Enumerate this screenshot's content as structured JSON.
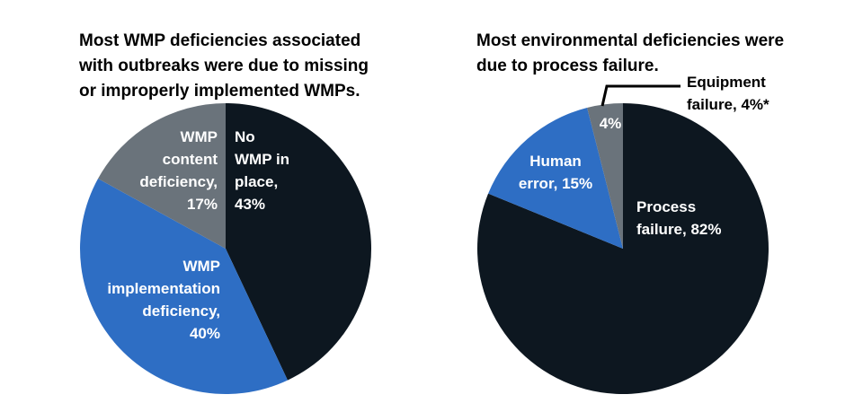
{
  "chart_data": [
    {
      "type": "pie",
      "title": "Most WMP deficiencies associated\nwith outbreaks were due to missing\nor improperly implemented WMPs.",
      "slices": [
        {
          "label": "No WMP in place",
          "display": [
            "No",
            "WMP in",
            "place,",
            "43%"
          ],
          "value": 43,
          "color": "#0d1720",
          "text_color": "#ffffff"
        },
        {
          "label": "WMP implementation deficiency",
          "display": [
            "WMP",
            "implementation",
            "deficiency,",
            "40%"
          ],
          "value": 40,
          "color": "#2e6ec4",
          "text_color": "#ffffff"
        },
        {
          "label": "WMP content deficiency",
          "display": [
            "WMP",
            "content",
            "deficiency,",
            "17%"
          ],
          "value": 17,
          "color": "#6a737b",
          "text_color": "#ffffff"
        }
      ],
      "legend": "none"
    },
    {
      "type": "pie",
      "title": "Most environmental deficiencies were\ndue to process failure.",
      "slices": [
        {
          "label": "Process failure",
          "display": [
            "Process",
            "failure, 82%"
          ],
          "value": 82,
          "color": "#0d1720",
          "text_color": "#ffffff"
        },
        {
          "label": "Human error",
          "display": [
            "Human",
            "error, 15%"
          ],
          "value": 15,
          "color": "#2e6ec4",
          "text_color": "#ffffff"
        },
        {
          "label": "Equipment failure",
          "display": [
            "4%"
          ],
          "value": 4,
          "color": "#6a737b",
          "text_color": "#ffffff"
        }
      ],
      "callout": {
        "lines": [
          "Equipment",
          "failure, 4%*"
        ],
        "slice": "Equipment failure"
      },
      "legend": "none"
    }
  ]
}
